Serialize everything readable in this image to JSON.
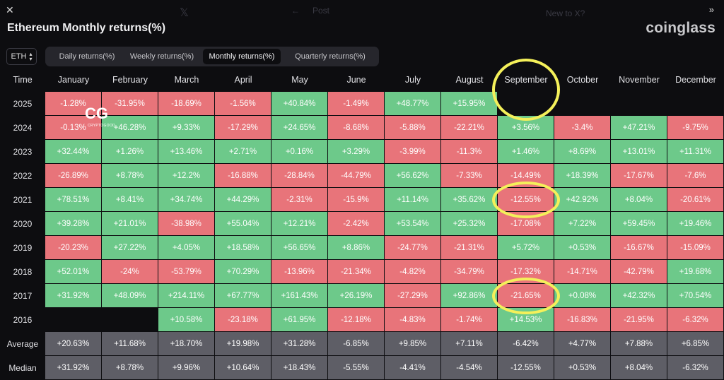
{
  "window": {
    "close_icon": "close-icon",
    "expand_icon": "double-chevron-right-icon",
    "ghost_post": "Post",
    "ghost_new": "New to X?"
  },
  "header": {
    "title": "Ethereum Monthly returns(%)",
    "brand": "coinglass"
  },
  "coin_select": {
    "value": "ETH",
    "icon": "sort-arrows-icon"
  },
  "tabs": [
    {
      "label": "Daily returns(%)",
      "active": false
    },
    {
      "label": "Weekly returns(%)",
      "active": false
    },
    {
      "label": "Monthly returns(%)",
      "active": true
    },
    {
      "label": "Quarterly returns(%)",
      "active": false
    }
  ],
  "watermark": {
    "logo": "CG",
    "text": "CRYPTOGOOD"
  },
  "chart_data": {
    "type": "table",
    "corner_label": "Time",
    "columns": [
      "January",
      "February",
      "March",
      "April",
      "May",
      "June",
      "July",
      "August",
      "September",
      "October",
      "November",
      "December"
    ],
    "colors": {
      "positive": "#6dc98a",
      "negative": "#e8747a",
      "summary": "#5e5e66"
    },
    "rows": [
      {
        "label": "2025",
        "values": [
          "-1.28%",
          "-31.95%",
          "-18.69%",
          "-1.56%",
          "+40.84%",
          "-1.49%",
          "+48.77%",
          "+15.95%",
          "",
          "",
          "",
          ""
        ]
      },
      {
        "label": "2024",
        "values": [
          "-0.13%",
          "+46.28%",
          "+9.33%",
          "-17.29%",
          "+24.65%",
          "-8.68%",
          "-5.88%",
          "-22.21%",
          "+3.56%",
          "-3.4%",
          "+47.21%",
          "-9.75%"
        ]
      },
      {
        "label": "2023",
        "values": [
          "+32.44%",
          "+1.26%",
          "+13.46%",
          "+2.71%",
          "+0.16%",
          "+3.29%",
          "-3.99%",
          "-11.3%",
          "+1.46%",
          "+8.69%",
          "+13.01%",
          "+11.31%"
        ]
      },
      {
        "label": "2022",
        "values": [
          "-26.89%",
          "+8.78%",
          "+12.2%",
          "-16.88%",
          "-28.84%",
          "-44.79%",
          "+56.62%",
          "-7.33%",
          "-14.49%",
          "+18.39%",
          "-17.67%",
          "-7.6%"
        ]
      },
      {
        "label": "2021",
        "values": [
          "+78.51%",
          "+8.41%",
          "+34.74%",
          "+44.29%",
          "-2.31%",
          "-15.9%",
          "+11.14%",
          "+35.62%",
          "-12.55%",
          "+42.92%",
          "+8.04%",
          "-20.61%"
        ]
      },
      {
        "label": "2020",
        "values": [
          "+39.28%",
          "+21.01%",
          "-38.98%",
          "+55.04%",
          "+12.21%",
          "-2.42%",
          "+53.54%",
          "+25.32%",
          "-17.08%",
          "+7.22%",
          "+59.45%",
          "+19.46%"
        ]
      },
      {
        "label": "2019",
        "values": [
          "-20.23%",
          "+27.22%",
          "+4.05%",
          "+18.58%",
          "+56.65%",
          "+8.86%",
          "-24.77%",
          "-21.31%",
          "+5.72%",
          "+0.53%",
          "-16.67%",
          "-15.09%"
        ]
      },
      {
        "label": "2018",
        "values": [
          "+52.01%",
          "-24%",
          "-53.79%",
          "+70.29%",
          "-13.96%",
          "-21.34%",
          "-4.82%",
          "-34.79%",
          "-17.32%",
          "-14.71%",
          "-42.79%",
          "+19.68%"
        ]
      },
      {
        "label": "2017",
        "values": [
          "+31.92%",
          "+48.09%",
          "+214.11%",
          "+67.77%",
          "+161.43%",
          "+26.19%",
          "-27.29%",
          "+92.86%",
          "-21.65%",
          "+0.08%",
          "+42.32%",
          "+70.54%"
        ]
      },
      {
        "label": "2016",
        "values": [
          "",
          "",
          "+10.58%",
          "-23.18%",
          "+61.95%",
          "-12.18%",
          "-4.83%",
          "-1.74%",
          "+14.53%",
          "-16.83%",
          "-21.95%",
          "-6.32%"
        ]
      }
    ],
    "summary": [
      {
        "label": "Average",
        "values": [
          "+20.63%",
          "+11.68%",
          "+18.70%",
          "+19.98%",
          "+31.28%",
          "-6.85%",
          "+9.85%",
          "+7.11%",
          "-6.42%",
          "+4.77%",
          "+7.88%",
          "+6.85%"
        ]
      },
      {
        "label": "Median",
        "values": [
          "+31.92%",
          "+8.78%",
          "+9.96%",
          "+10.64%",
          "+18.43%",
          "-5.55%",
          "-4.41%",
          "-4.54%",
          "-12.55%",
          "+0.53%",
          "+8.04%",
          "-6.32%"
        ]
      }
    ],
    "highlights": [
      {
        "row": "2025",
        "column": "September"
      },
      {
        "row": "2021",
        "column": "September"
      },
      {
        "row": "2017",
        "column": "September"
      }
    ]
  }
}
